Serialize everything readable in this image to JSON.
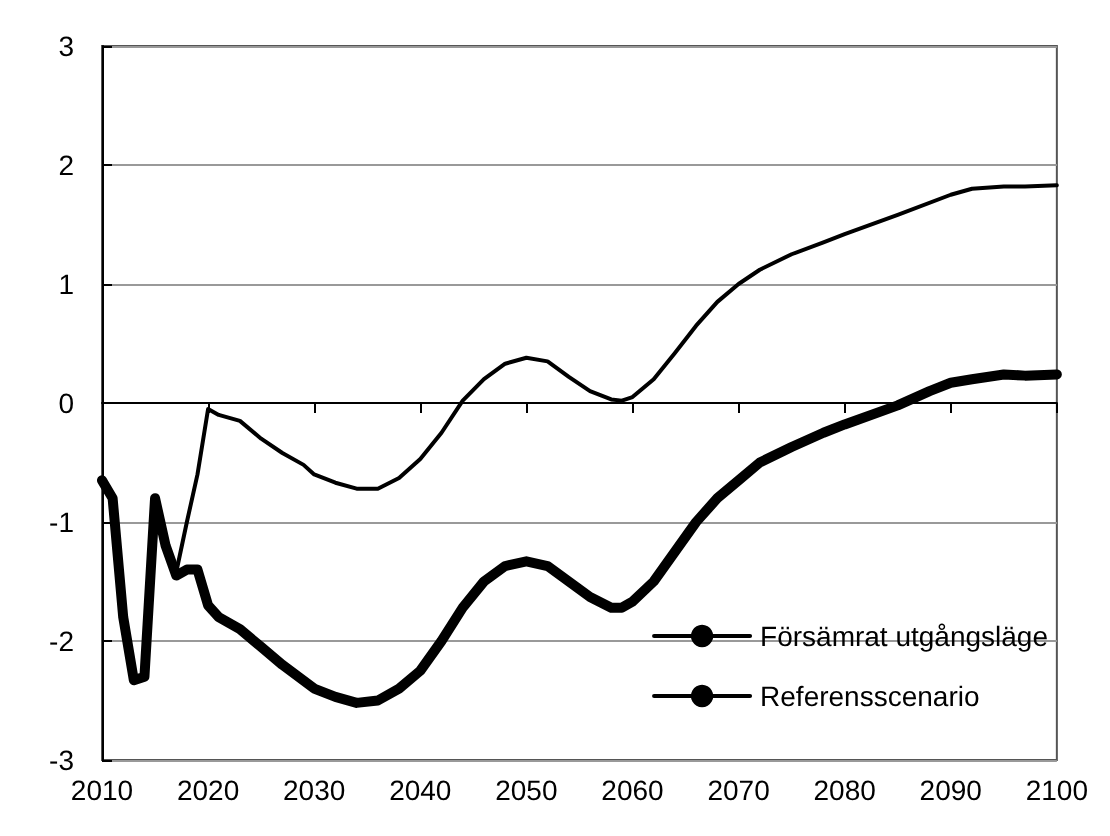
{
  "chart_data": {
    "type": "line",
    "xlim": [
      2010,
      2100
    ],
    "xticks": [
      2010,
      2020,
      2030,
      2040,
      2050,
      2060,
      2070,
      2080,
      2090,
      2100
    ],
    "ylim": [
      -3,
      3
    ],
    "yticks": [
      -3,
      -2,
      -1,
      0,
      1,
      2,
      3
    ],
    "grid": "y",
    "legend": "bottom right",
    "marker": "none",
    "line_style": "solid",
    "series": [
      {
        "name": "Försämrat utgångsläge",
        "color": "#000000",
        "x": [
          2010,
          2011,
          2012,
          2013,
          2014,
          2015,
          2016,
          2017,
          2018,
          2019,
          2020,
          2021,
          2022,
          2023,
          2025,
          2027,
          2030,
          2032,
          2034,
          2036,
          2038,
          2040,
          2042,
          2044,
          2046,
          2048,
          2050,
          2052,
          2054,
          2056,
          2058,
          2059,
          2060,
          2062,
          2064,
          2066,
          2068,
          2070,
          2072,
          2075,
          2078,
          2080,
          2085,
          2088,
          2090,
          2092,
          2095,
          2097,
          2100
        ],
        "values": [
          -0.65,
          -0.8,
          -1.8,
          -2.33,
          -2.3,
          -0.8,
          -1.2,
          -1.45,
          -1.4,
          -1.4,
          -1.7,
          -1.8,
          -1.85,
          -1.9,
          -2.05,
          -2.2,
          -2.4,
          -2.47,
          -2.52,
          -2.5,
          -2.4,
          -2.25,
          -2.0,
          -1.72,
          -1.5,
          -1.37,
          -1.33,
          -1.37,
          -1.5,
          -1.63,
          -1.72,
          -1.72,
          -1.67,
          -1.5,
          -1.25,
          -1.0,
          -0.8,
          -0.65,
          -0.5,
          -0.37,
          -0.25,
          -0.18,
          -0.02,
          0.1,
          0.17,
          0.2,
          0.24,
          0.23,
          0.24
        ]
      },
      {
        "name": "Referensscenario",
        "color": "#000000",
        "x": [
          2017,
          2018,
          2019,
          2020,
          2021,
          2023,
          2025,
          2027,
          2029,
          2030,
          2032,
          2034,
          2036,
          2038,
          2040,
          2042,
          2044,
          2046,
          2048,
          2050,
          2052,
          2054,
          2056,
          2058,
          2059,
          2060,
          2062,
          2064,
          2066,
          2068,
          2070,
          2072,
          2075,
          2078,
          2080,
          2085,
          2090,
          2092,
          2095,
          2097,
          2100
        ],
        "values": [
          -1.42,
          -1.0,
          -0.6,
          -0.05,
          -0.1,
          -0.15,
          -0.3,
          -0.42,
          -0.52,
          -0.6,
          -0.67,
          -0.72,
          -0.72,
          -0.63,
          -0.47,
          -0.25,
          0.02,
          0.2,
          0.33,
          0.38,
          0.35,
          0.22,
          0.1,
          0.03,
          0.02,
          0.05,
          0.2,
          0.42,
          0.65,
          0.85,
          1.0,
          1.12,
          1.25,
          1.35,
          1.42,
          1.58,
          1.75,
          1.8,
          1.82,
          1.82,
          1.83
        ]
      }
    ]
  }
}
